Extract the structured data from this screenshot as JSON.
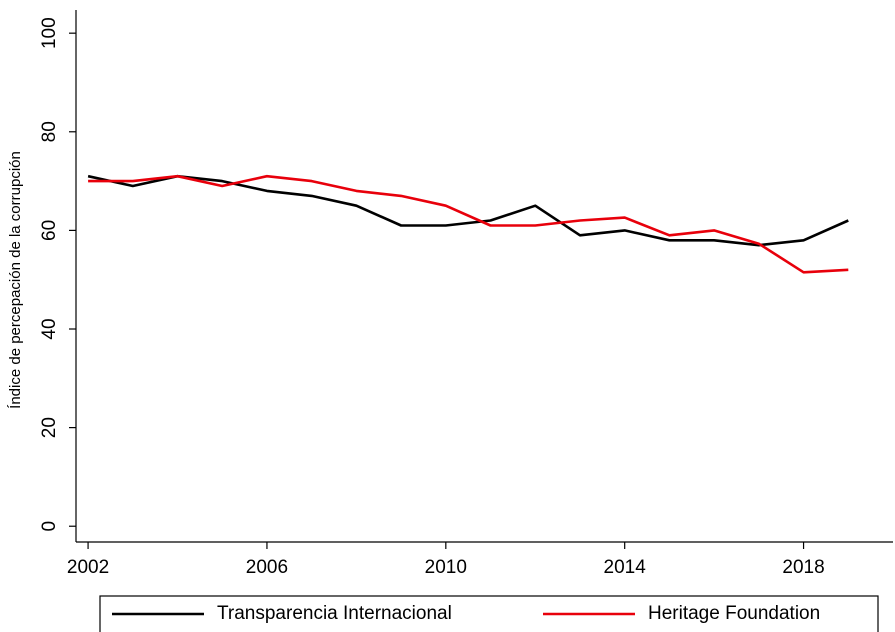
{
  "chart_data": {
    "type": "line",
    "y_label": "Índice de percepación de la corrupción",
    "x": [
      2002,
      2003,
      2004,
      2005,
      2006,
      2007,
      2008,
      2009,
      2010,
      2011,
      2012,
      2013,
      2014,
      2015,
      2016,
      2017,
      2018,
      2019
    ],
    "series": [
      {
        "name": "Transparencia Internacional",
        "color": "#000000",
        "values": [
          71,
          69,
          71,
          70,
          68,
          67,
          65,
          61,
          61,
          62,
          65,
          59,
          60,
          58,
          58,
          57,
          58,
          62
        ]
      },
      {
        "name": "Heritage Foundation",
        "color": "#e8000b",
        "values": [
          70,
          70,
          71,
          69,
          71,
          70,
          68,
          67,
          65,
          61,
          61,
          62,
          62.6,
          59,
          60,
          57.3,
          51.5,
          52
        ]
      }
    ],
    "xlim": [
      2001.73,
      2020
    ],
    "xticks": [
      2002,
      2006,
      2010,
      2014,
      2018
    ],
    "ylim": [
      -3.2,
      104.7
    ],
    "yticks": [
      0,
      20,
      40,
      60,
      80,
      100
    ],
    "legend": "bottom",
    "grid": false
  }
}
